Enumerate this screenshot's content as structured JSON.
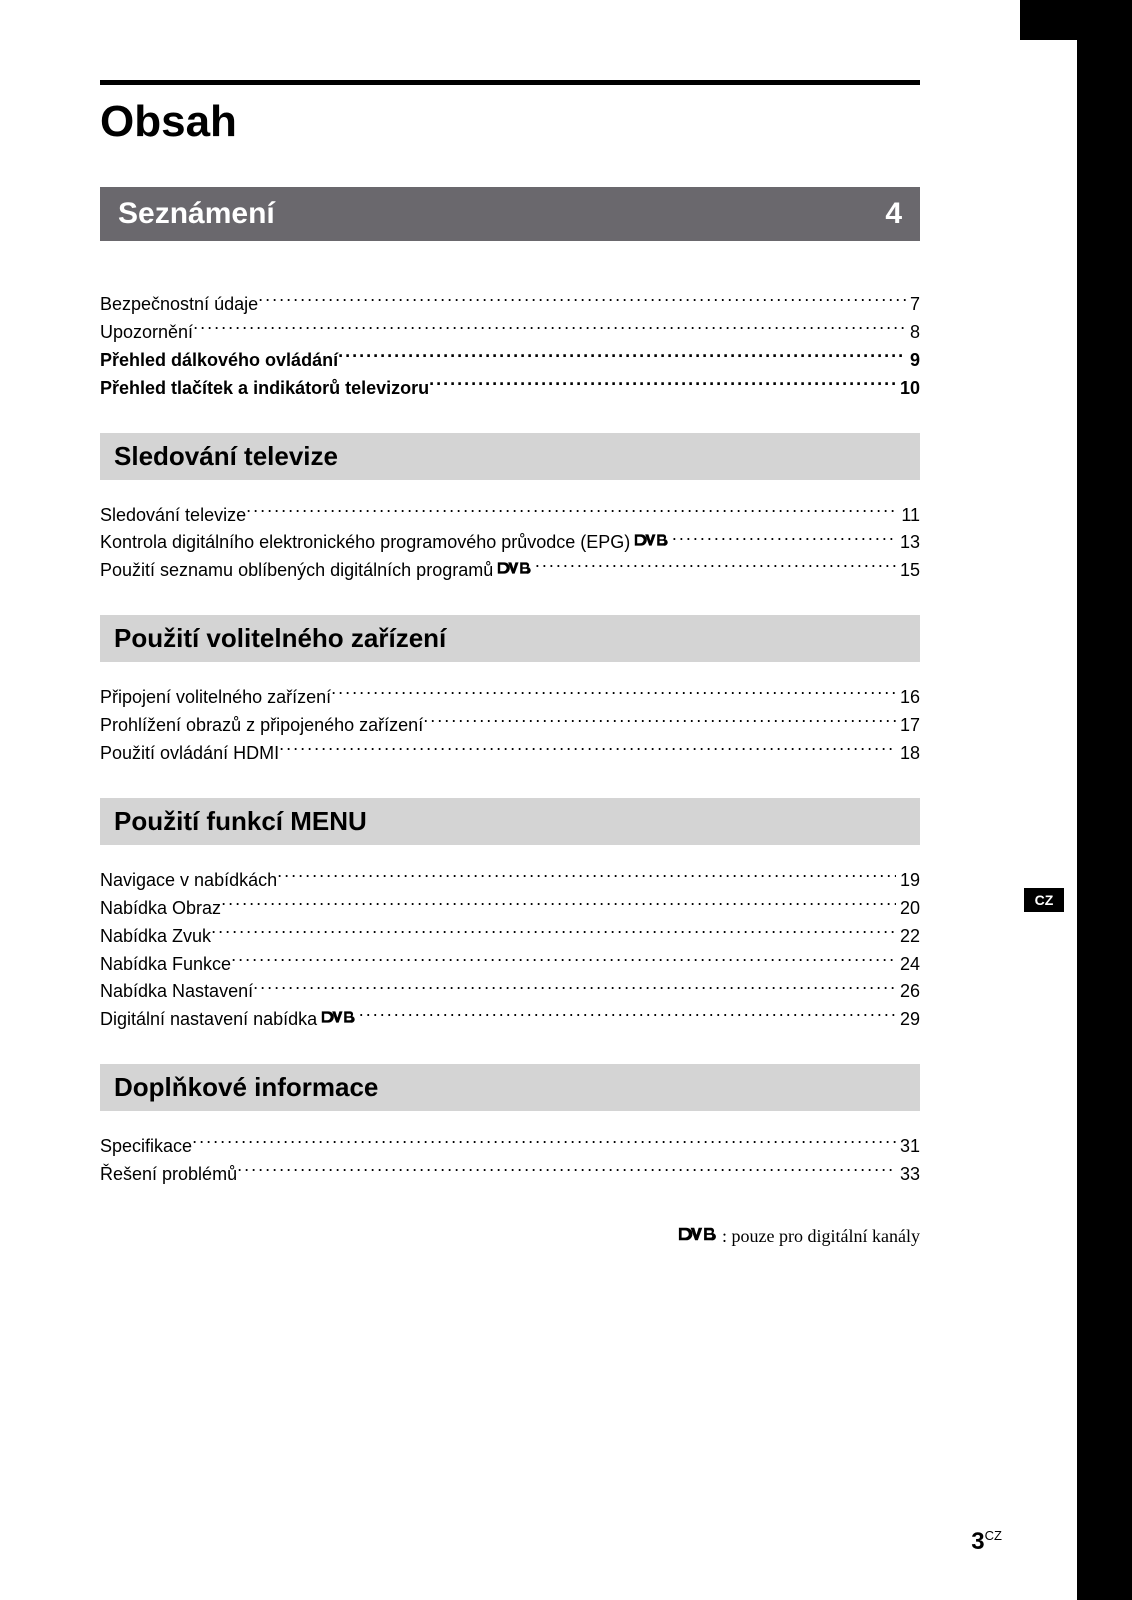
{
  "colors": {
    "page_bg": "#ffffff",
    "sidebar_bg": "#000000",
    "sidebar_text": "#ffffff",
    "rule": "#000000",
    "section_dark_bg": "#6a686d",
    "section_dark_text": "#ffffff",
    "section_light_bg": "#d4d4d4",
    "section_light_text": "#000000",
    "body_text": "#000000"
  },
  "typography": {
    "title_fontsize": 44,
    "section_dark_fontsize": 30,
    "section_light_fontsize": 26,
    "toc_fontsize": 18,
    "legend_fontsize": 18,
    "footer_num_fontsize": 24
  },
  "side_label": "CZ",
  "title": "Obsah",
  "main_section": {
    "label": "Seznámení",
    "page": "4"
  },
  "intro_items": [
    {
      "label": "Bezpečnostní údaje",
      "page": "7",
      "bold": false
    },
    {
      "label": "Upozornění",
      "page": "8",
      "bold": false
    },
    {
      "label": "Přehled dálkového ovládání",
      "page": "9",
      "bold": true
    },
    {
      "label": "Přehled tlačítek a indikátorů televizoru",
      "page": "10",
      "bold": true
    }
  ],
  "sections": [
    {
      "heading": "Sledování televize",
      "items": [
        {
          "label": "Sledování televize",
          "page": "11",
          "dvb": false
        },
        {
          "label": "Kontrola digitálního elektronického programového průvodce (EPG)",
          "page": "13",
          "dvb": true
        },
        {
          "label": "Použití seznamu oblíbených digitálních programů",
          "page": "15",
          "dvb": true
        }
      ]
    },
    {
      "heading": "Použití volitelného zařízení",
      "items": [
        {
          "label": "Připojení volitelného zařízení",
          "page": "16",
          "dvb": false
        },
        {
          "label": "Prohlížení obrazů z připojeného zařízení",
          "page": "17",
          "dvb": false
        },
        {
          "label": "Použití ovládání HDMI",
          "page": "18",
          "dvb": false
        }
      ]
    },
    {
      "heading": "Použití funkcí MENU",
      "items": [
        {
          "label": "Navigace v nabídkách",
          "page": "19",
          "dvb": false
        },
        {
          "label": "Nabídka Obraz",
          "page": "20",
          "dvb": false
        },
        {
          "label": "Nabídka Zvuk",
          "page": "22",
          "dvb": false
        },
        {
          "label": "Nabídka Funkce",
          "page": "24",
          "dvb": false
        },
        {
          "label": "Nabídka Nastavení",
          "page": "26",
          "dvb": false
        },
        {
          "label": "Digitální nastavení nabídka",
          "page": "29",
          "dvb": true
        }
      ]
    },
    {
      "heading": "Doplňkové informace",
      "items": [
        {
          "label": "Specifikace",
          "page": "31",
          "dvb": false
        },
        {
          "label": "Řešení problémů",
          "page": "33",
          "dvb": false
        }
      ]
    }
  ],
  "legend": ": pouze pro digitální kanály",
  "footer": {
    "page_number": "3",
    "suffix": "CZ"
  }
}
